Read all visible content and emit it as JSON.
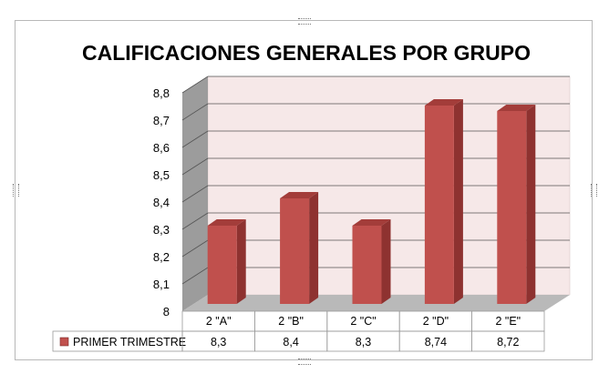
{
  "chart_data": {
    "type": "bar",
    "title": "CALIFICACIONES GENERALES POR GRUPO",
    "categories": [
      "2 \"A\"",
      "2 \"B\"",
      "2 \"C\"",
      "2 \"D\"",
      "2 \"E\""
    ],
    "series": [
      {
        "name": "PRIMER TRIMESTRE",
        "values": [
          8.3,
          8.4,
          8.3,
          8.74,
          8.72
        ]
      }
    ],
    "value_labels": [
      "8,3",
      "8,4",
      "8,3",
      "8,74",
      "8,72"
    ],
    "y_ticks": [
      "8",
      "8,1",
      "8,2",
      "8,3",
      "8,4",
      "8,5",
      "8,6",
      "8,7",
      "8,8"
    ],
    "ylim": [
      8,
      8.8
    ],
    "grid": true,
    "legend": "data-table",
    "style": "3d",
    "colors": {
      "bar_front": "#c0504d",
      "bar_side": "#8e3230",
      "bar_top": "#a33d3a",
      "wall": "#f6e8e8",
      "side_wall": "#9c9c9c",
      "floor": "#b9b9b9"
    }
  }
}
